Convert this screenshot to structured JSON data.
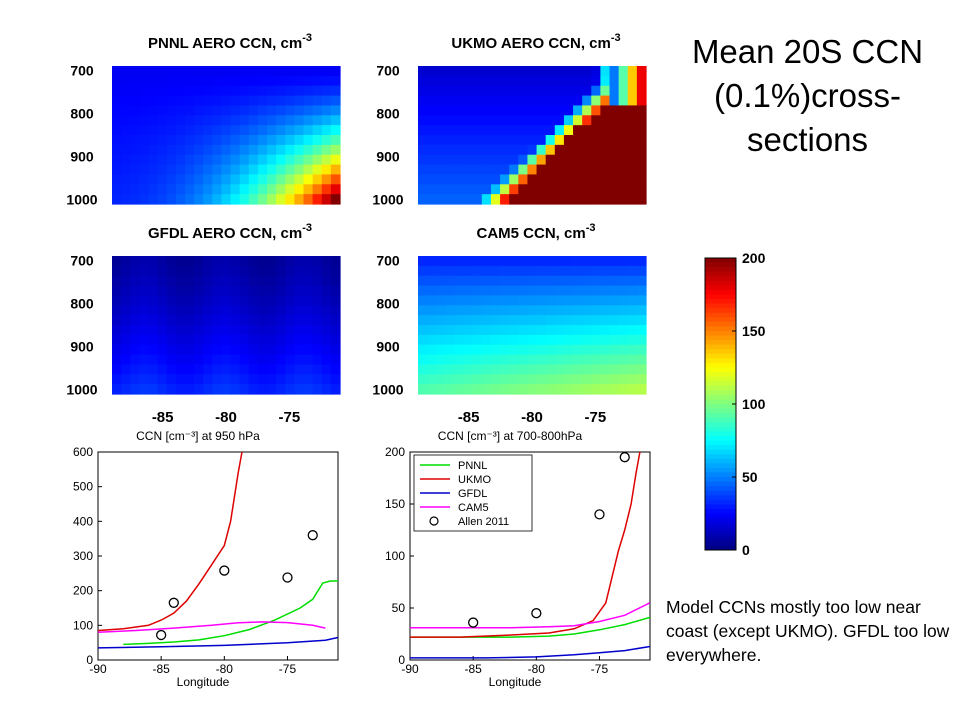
{
  "slide": {
    "title": "Mean 20S CCN (0.1%)cross-sections",
    "note": "Model CCNs mostly too low near coast (except UKMO).  GFDL too low everywhere."
  },
  "chart_data": [
    {
      "type": "heatmap",
      "title": "PNNL AERO CCN, cm",
      "title_sup": "-3",
      "y_ticks": [
        700,
        800,
        900,
        1000
      ],
      "x_range": [
        -89,
        -71
      ],
      "y_range": [
        690,
        1010
      ],
      "x": [
        -89,
        -87.5,
        -86,
        -84.5,
        -83,
        -81.5,
        -80,
        -78.5,
        -77,
        -75.5,
        -74,
        -72.5,
        -71
      ],
      "y": [
        690,
        720,
        750,
        780,
        810,
        840,
        870,
        900,
        930,
        960,
        990,
        1010
      ],
      "z_model": "pnnl"
    },
    {
      "type": "heatmap",
      "title": "UKMO AERO CCN, cm",
      "title_sup": "-3",
      "y_ticks": [
        700,
        800,
        900,
        1000
      ],
      "x_range": [
        -89,
        -71
      ],
      "y_range": [
        690,
        1010
      ],
      "z_model": "ukmo"
    },
    {
      "type": "heatmap",
      "title": "GFDL AERO CCN, cm",
      "title_sup": "-3",
      "y_ticks": [
        700,
        800,
        900,
        1000
      ],
      "x_range": [
        -89,
        -71
      ],
      "y_range": [
        690,
        1010
      ],
      "z_model": "gfdl"
    },
    {
      "type": "heatmap",
      "title": "CAM5 CCN, cm",
      "title_sup": "-3",
      "y_ticks": [
        700,
        800,
        900,
        1000
      ],
      "x_range": [
        -89,
        -71
      ],
      "y_range": [
        690,
        1010
      ],
      "x_ticks": [
        -85,
        -80,
        -75
      ],
      "z_model": "cam5"
    },
    {
      "type": "line",
      "title": "CCN [cm⁻³] at 950 hPa",
      "xlabel": "Longitude",
      "xlim": [
        -90,
        -71
      ],
      "ylim": [
        0,
        600
      ],
      "x_ticks": [
        -90,
        -85,
        -80,
        -75
      ],
      "y_ticks": [
        0,
        100,
        200,
        300,
        400,
        500,
        600
      ],
      "series": [
        {
          "name": "PNNL",
          "color": "#00dd00",
          "x": [
            -88,
            -86,
            -84,
            -82,
            -80,
            -78,
            -76,
            -74,
            -73,
            -72.2,
            -71.6,
            -71
          ],
          "y": [
            45,
            48,
            52,
            58,
            70,
            88,
            115,
            150,
            175,
            222,
            228,
            228
          ]
        },
        {
          "name": "UKMO",
          "color": "#dd0000",
          "x": [
            -90,
            -88,
            -86,
            -85,
            -84,
            -83,
            -82,
            -81,
            -80,
            -79.5,
            -79.2,
            -78.9,
            -78.6
          ],
          "y": [
            85,
            90,
            100,
            115,
            135,
            170,
            220,
            275,
            330,
            400,
            470,
            540,
            600
          ]
        },
        {
          "name": "GFDL",
          "color": "#0000cc",
          "x": [
            -90,
            -85,
            -80,
            -75,
            -72,
            -71
          ],
          "y": [
            35,
            38,
            42,
            50,
            57,
            65
          ]
        },
        {
          "name": "CAM5",
          "color": "#ff00ff",
          "x": [
            -90,
            -87,
            -84,
            -81,
            -79,
            -77,
            -75,
            -73,
            -72
          ],
          "y": [
            80,
            85,
            92,
            100,
            107,
            110,
            108,
            100,
            92
          ]
        },
        {
          "name": "Allen 2011",
          "marker": "circle",
          "x": [
            -85,
            -84,
            -80,
            -75,
            -73
          ],
          "y": [
            72,
            165,
            258,
            238,
            360
          ]
        }
      ]
    },
    {
      "type": "line",
      "title": "CCN [cm⁻³] at 700-800hPa",
      "xlabel": "Longitude",
      "xlim": [
        -90,
        -71
      ],
      "ylim": [
        0,
        200
      ],
      "x_ticks": [
        -90,
        -85,
        -80,
        -75
      ],
      "y_ticks": [
        0,
        50,
        100,
        150,
        200
      ],
      "legend": "top-left",
      "series": [
        {
          "name": "PNNL",
          "color": "#00dd00",
          "x": [
            -90,
            -86,
            -82,
            -79,
            -77,
            -75,
            -73,
            -71
          ],
          "y": [
            22,
            22,
            22,
            23,
            25,
            29,
            34,
            41
          ]
        },
        {
          "name": "UKMO",
          "color": "#dd0000",
          "x": [
            -90,
            -86,
            -82,
            -79,
            -77,
            -75.5,
            -74.5,
            -74,
            -73.5,
            -73,
            -72.5,
            -72.1,
            -71.8
          ],
          "y": [
            22,
            22,
            24,
            26,
            30,
            38,
            55,
            80,
            105,
            125,
            150,
            180,
            200
          ]
        },
        {
          "name": "GFDL",
          "color": "#0000cc",
          "x": [
            -90,
            -84,
            -80,
            -77,
            -75,
            -73,
            -71
          ],
          "y": [
            2,
            2,
            3,
            5,
            7,
            9,
            13
          ]
        },
        {
          "name": "CAM5",
          "color": "#ff00ff",
          "x": [
            -90,
            -85,
            -82,
            -79,
            -77,
            -75,
            -73,
            -71
          ],
          "y": [
            31,
            31,
            31,
            32,
            33,
            37,
            43,
            55
          ]
        },
        {
          "name": "Allen 2011",
          "marker": "circle",
          "x": [
            -85,
            -80,
            -75,
            -73
          ],
          "y": [
            36,
            45,
            140,
            195
          ]
        }
      ]
    }
  ],
  "colorbar": {
    "range": [
      0,
      200
    ],
    "ticks": [
      0,
      50,
      100,
      150,
      200
    ]
  }
}
